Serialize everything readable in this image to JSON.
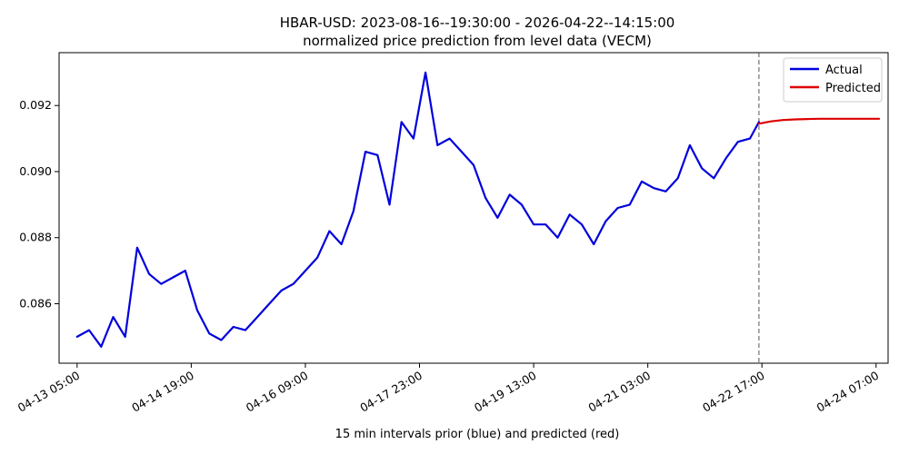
{
  "chart_data": {
    "type": "line",
    "title": "HBAR-USD: 2023-08-16--19:30:00 - 2026-04-22--14:15:00",
    "subtitle": "normalized price prediction from level data (VECM)",
    "xlabel": "15 min intervals prior (blue) and predicted (red)",
    "ylabel": "",
    "xlim": [
      "04-12 23:00",
      "04-24 11:00"
    ],
    "ylim": [
      0.0842,
      0.0936
    ],
    "y_ticks": [
      0.086,
      0.088,
      0.09,
      0.092
    ],
    "y_tick_labels": [
      "0.086",
      "0.088",
      "0.090",
      "0.092"
    ],
    "x_ticks": [
      "04-13 05:00",
      "04-14 19:00",
      "04-16 09:00",
      "04-17 23:00",
      "04-19 13:00",
      "04-21 03:00",
      "04-22 17:00",
      "04-24 07:00"
    ],
    "x_tick_labels": [
      "04-13 05:00",
      "04-14 19:00",
      "04-16 09:00",
      "04-17 23:00",
      "04-19 13:00",
      "04-21 03:00",
      "04-22 17:00",
      "04-24 07:00"
    ],
    "vline_x": "04-22 16:00",
    "grid": false,
    "legend_position": "top-right",
    "series": [
      {
        "name": "Actual",
        "color": "#0000dd",
        "x": [
          "04-13 05:00",
          "04-13 09:00",
          "04-13 13:00",
          "04-13 17:00",
          "04-13 21:00",
          "04-14 01:00",
          "04-14 05:00",
          "04-14 09:00",
          "04-14 13:00",
          "04-14 17:00",
          "04-14 21:00",
          "04-15 01:00",
          "04-15 05:00",
          "04-15 09:00",
          "04-15 13:00",
          "04-15 17:00",
          "04-15 21:00",
          "04-16 01:00",
          "04-16 05:00",
          "04-16 09:00",
          "04-16 13:00",
          "04-16 17:00",
          "04-16 21:00",
          "04-17 01:00",
          "04-17 05:00",
          "04-17 09:00",
          "04-17 13:00",
          "04-17 17:00",
          "04-17 21:00",
          "04-18 01:00",
          "04-18 05:00",
          "04-18 09:00",
          "04-18 13:00",
          "04-18 17:00",
          "04-18 21:00",
          "04-19 01:00",
          "04-19 05:00",
          "04-19 09:00",
          "04-19 13:00",
          "04-19 17:00",
          "04-19 21:00",
          "04-20 01:00",
          "04-20 05:00",
          "04-20 09:00",
          "04-20 13:00",
          "04-20 17:00",
          "04-20 21:00",
          "04-21 01:00",
          "04-21 05:00",
          "04-21 09:00",
          "04-21 13:00",
          "04-21 17:00",
          "04-21 21:00",
          "04-22 01:00",
          "04-22 05:00",
          "04-22 09:00",
          "04-22 13:00",
          "04-22 16:00"
        ],
        "values": [
          0.085,
          0.0852,
          0.0847,
          0.0856,
          0.085,
          0.0877,
          0.0869,
          0.0866,
          0.0868,
          0.087,
          0.0858,
          0.0851,
          0.0849,
          0.0853,
          0.0852,
          0.0856,
          0.086,
          0.0864,
          0.0866,
          0.087,
          0.0874,
          0.0882,
          0.0878,
          0.0888,
          0.0906,
          0.0905,
          0.089,
          0.0915,
          0.091,
          0.093,
          0.0908,
          0.091,
          0.0906,
          0.0902,
          0.0892,
          0.0886,
          0.0893,
          0.089,
          0.0884,
          0.0884,
          0.088,
          0.0887,
          0.0884,
          0.0878,
          0.0885,
          0.0889,
          0.089,
          0.0897,
          0.0895,
          0.0894,
          0.0898,
          0.0908,
          0.0901,
          0.0898,
          0.0904,
          0.0909,
          0.091,
          0.0915
        ]
      },
      {
        "name": "Predicted",
        "color": "#dd0000",
        "x": [
          "04-22 16:00",
          "04-22 20:00",
          "04-23 00:00",
          "04-23 04:00",
          "04-23 08:00",
          "04-23 12:00",
          "04-23 16:00",
          "04-23 20:00",
          "04-24 00:00",
          "04-24 04:00",
          "04-24 08:00"
        ],
        "values": [
          0.09145,
          0.09152,
          0.09156,
          0.09158,
          0.09159,
          0.0916,
          0.0916,
          0.0916,
          0.0916,
          0.0916,
          0.0916
        ]
      }
    ]
  }
}
